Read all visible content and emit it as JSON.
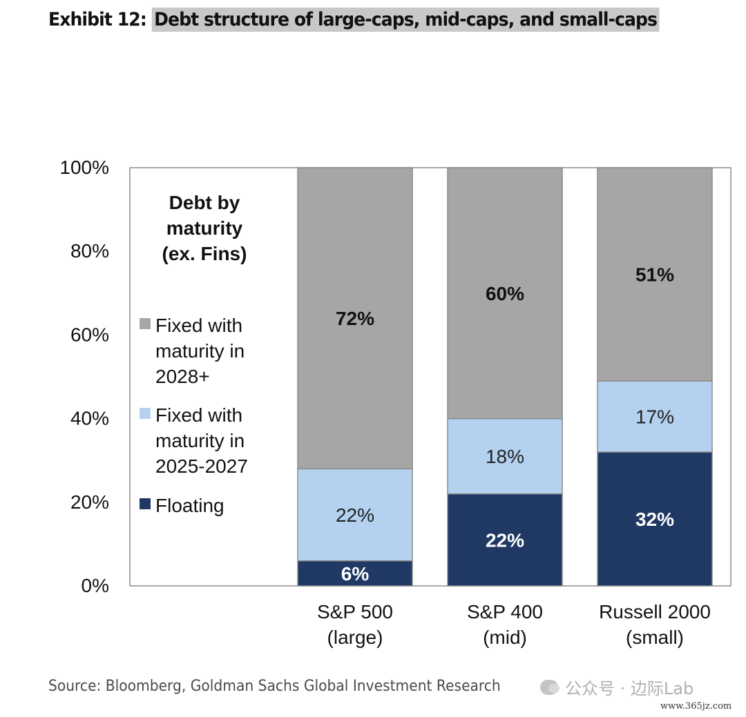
{
  "header": {
    "label": "Exhibit 12:",
    "text": "Debt structure of large-caps, mid-caps, and small-caps"
  },
  "legend": {
    "title_lines": [
      "Debt by",
      "maturity",
      "(ex. Fins)"
    ],
    "items": [
      {
        "lines": [
          "Fixed with",
          "maturity in",
          "2028+"
        ],
        "color": "#a6a6a6"
      },
      {
        "lines": [
          "Fixed with",
          "maturity in",
          "2025-2027"
        ],
        "color": "#b4d1ef"
      },
      {
        "lines": [
          "Floating"
        ],
        "color": "#1f3864"
      }
    ]
  },
  "chart_data": {
    "type": "bar",
    "stacked": true,
    "categories": [
      [
        "S&P 500",
        "(large)"
      ],
      [
        "S&P 400",
        "(mid)"
      ],
      [
        "Russell 2000",
        "(small)"
      ]
    ],
    "series": [
      {
        "name": "Floating",
        "values": [
          6,
          22,
          32
        ],
        "labels": [
          "6%",
          "22%",
          "32%"
        ],
        "color": "#1f3864",
        "label_color": "#ffffff",
        "bold": true
      },
      {
        "name": "Fixed with maturity in 2025-2027",
        "values": [
          22,
          18,
          17
        ],
        "labels": [
          "22%",
          "18%",
          "17%"
        ],
        "color": "#b4d1ef",
        "label_color": "#222222",
        "bold": false
      },
      {
        "name": "Fixed with maturity in 2028+",
        "values": [
          72,
          60,
          51
        ],
        "labels": [
          "72%",
          "60%",
          "51%"
        ],
        "color": "#a6a6a6",
        "label_color": "#111111",
        "bold": true
      }
    ],
    "ylim": [
      0,
      100
    ],
    "yticks": [
      "0%",
      "20%",
      "40%",
      "60%",
      "80%",
      "100%"
    ],
    "xlabel": "",
    "ylabel": "",
    "grid": false,
    "legend_position": "left-inside"
  },
  "source": "Source: Bloomberg, Goldman Sachs Global Investment Research",
  "watermark": {
    "text": "公众号 · 边际Lab",
    "icon": "wechat-icon",
    "site": "www.365jz.com"
  }
}
